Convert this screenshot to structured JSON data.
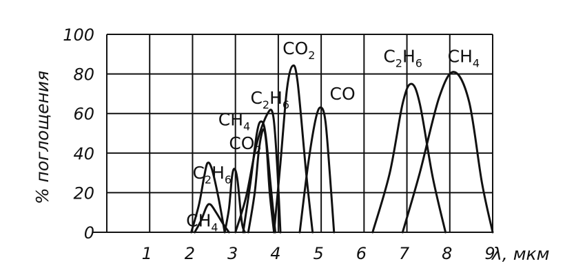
{
  "chart_data": {
    "type": "line",
    "title": "",
    "xlabel": "λ, мкм",
    "ylabel": "% поглощения",
    "xlim": [
      0,
      9
    ],
    "ylim": [
      0,
      100
    ],
    "x_ticks": [
      "1",
      "2",
      "3",
      "4",
      "5",
      "6",
      "7",
      "8",
      "9"
    ],
    "y_ticks": [
      "0",
      "20",
      "40",
      "60",
      "80",
      "100"
    ],
    "grid": true,
    "series": [
      {
        "name": "C2H6",
        "points": [
          [
            1.97,
            0
          ],
          [
            2.15,
            14
          ],
          [
            2.27,
            28
          ],
          [
            2.35,
            35
          ],
          [
            2.45,
            32
          ],
          [
            2.6,
            18
          ],
          [
            2.75,
            0
          ]
        ]
      },
      {
        "name": "CH4",
        "points": [
          [
            2.05,
            0
          ],
          [
            2.2,
            6
          ],
          [
            2.33,
            13
          ],
          [
            2.42,
            14
          ],
          [
            2.55,
            10
          ],
          [
            2.72,
            4
          ],
          [
            2.85,
            0
          ]
        ]
      },
      {
        "name": "CO2",
        "points": [
          [
            2.75,
            0
          ],
          [
            2.85,
            12
          ],
          [
            2.92,
            28
          ],
          [
            2.98,
            32
          ],
          [
            3.05,
            26
          ],
          [
            3.15,
            5
          ],
          [
            3.22,
            0
          ]
        ]
      },
      {
        "name": "CH4",
        "points": [
          [
            3.18,
            0
          ],
          [
            3.35,
            25
          ],
          [
            3.5,
            50
          ],
          [
            3.6,
            56
          ],
          [
            3.7,
            50
          ],
          [
            3.83,
            22
          ],
          [
            3.93,
            0
          ]
        ]
      },
      {
        "name": "CO2",
        "points": [
          [
            3.3,
            0
          ],
          [
            3.45,
            20
          ],
          [
            3.55,
            42
          ],
          [
            3.65,
            52
          ],
          [
            3.72,
            45
          ],
          [
            3.8,
            20
          ],
          [
            3.9,
            0
          ]
        ]
      },
      {
        "name": "C2H6",
        "points": [
          [
            3.0,
            0
          ],
          [
            3.25,
            18
          ],
          [
            3.5,
            45
          ],
          [
            3.75,
            60
          ],
          [
            3.88,
            59
          ],
          [
            3.97,
            35
          ],
          [
            4.05,
            0
          ]
        ]
      },
      {
        "name": "CO2",
        "points": [
          [
            3.9,
            0
          ],
          [
            4.05,
            35
          ],
          [
            4.2,
            72
          ],
          [
            4.33,
            84
          ],
          [
            4.45,
            76
          ],
          [
            4.65,
            30
          ],
          [
            4.8,
            0
          ]
        ]
      },
      {
        "name": "CO",
        "points": [
          [
            4.5,
            0
          ],
          [
            4.7,
            35
          ],
          [
            4.88,
            58
          ],
          [
            5.0,
            63
          ],
          [
            5.1,
            56
          ],
          [
            5.2,
            30
          ],
          [
            5.3,
            0
          ]
        ]
      },
      {
        "name": "C2H6",
        "points": [
          [
            6.2,
            0
          ],
          [
            6.6,
            30
          ],
          [
            6.9,
            65
          ],
          [
            7.1,
            75
          ],
          [
            7.3,
            65
          ],
          [
            7.6,
            28
          ],
          [
            7.9,
            0
          ]
        ]
      },
      {
        "name": "CH4",
        "points": [
          [
            6.9,
            0
          ],
          [
            7.3,
            30
          ],
          [
            7.75,
            68
          ],
          [
            8.1,
            81
          ],
          [
            8.45,
            66
          ],
          [
            8.75,
            25
          ],
          [
            9.0,
            0
          ]
        ]
      }
    ],
    "annotations": [
      {
        "base": "C",
        "sub": "2",
        "base2": "H",
        "sub2": "6",
        "x": 2.0,
        "y": 27
      },
      {
        "base": "CH",
        "sub": "4",
        "x": 1.85,
        "y": 3
      },
      {
        "base": "CO",
        "sub": "2",
        "x": 2.85,
        "y": 42
      },
      {
        "base": "CH",
        "sub": "4",
        "x": 2.6,
        "y": 54
      },
      {
        "base": "C",
        "sub": "2",
        "base2": "H",
        "sub2": "6",
        "x": 3.35,
        "y": 65
      },
      {
        "base": "CO",
        "sub": "2",
        "x": 4.1,
        "y": 90
      },
      {
        "base": "CO",
        "sub": "",
        "x": 5.2,
        "y": 67
      },
      {
        "base": "C",
        "sub": "2",
        "base2": "H",
        "sub2": "6",
        "x": 6.45,
        "y": 86
      },
      {
        "base": "CH",
        "sub": "4",
        "x": 7.95,
        "y": 86
      }
    ]
  }
}
